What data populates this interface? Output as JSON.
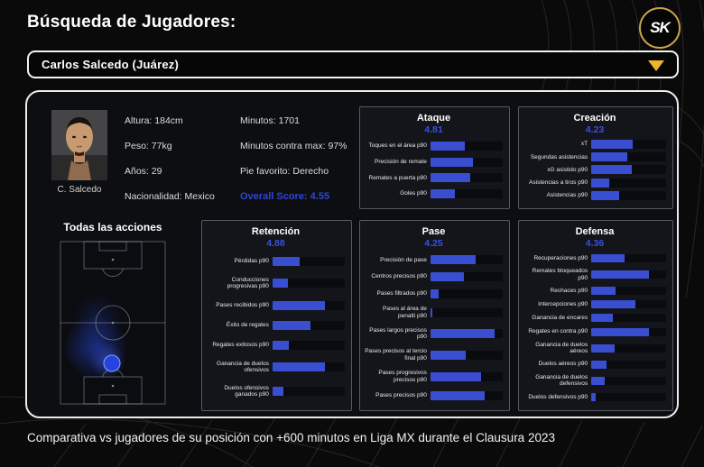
{
  "header": {
    "title": "Búsqueda de Jugadores:",
    "logo_text": "SK"
  },
  "player_select": {
    "value": "Carlos Salcedo (Juárez)"
  },
  "player": {
    "photo_caption": "C. Salcedo",
    "info_left": {
      "altura": "Altura: 184cm",
      "peso": "Peso: 77kg",
      "anos": "Años: 29",
      "nacionalidad": "Nacionalidad: Mexico"
    },
    "info_right": {
      "minutos": "Minutos: 1701",
      "minutos_contra": "Minutos contra max: 97%",
      "pie": "Pie favorito: Derecho"
    },
    "overall_score": "Overall Score: 4.55"
  },
  "pitch": {
    "title": "Todas las acciones"
  },
  "footer": {
    "note": "Comparativa vs jugadores de su posición con +600 minutos en Liga MX durante el Clausura 2023"
  },
  "colors": {
    "bar_blue": "#3a4ed2",
    "score_blue": "#3a50e0",
    "gold": "#f0b429",
    "panel_bg": "#13151b",
    "card_bg": "#0d0e12"
  },
  "chart_data": [
    {
      "type": "bar",
      "orientation": "horizontal",
      "title": "Ataque",
      "score": "4.81",
      "value_range": [
        0,
        100
      ],
      "values_are": "percentile fill of track, estimated from pixels",
      "categories": [
        "Toques en el área p90",
        "Precisión de remate",
        "Remates a puerta p90",
        "Goles p90"
      ],
      "values": [
        48,
        59,
        55,
        34
      ]
    },
    {
      "type": "bar",
      "orientation": "horizontal",
      "title": "Creación",
      "score": "4.23",
      "value_range": [
        0,
        100
      ],
      "values_are": "percentile fill of track, estimated from pixels",
      "categories": [
        "xT",
        "Segundas asistencias",
        "xG asistido p90",
        "Asistencias a tiros p90",
        "Asistencias p90"
      ],
      "values": [
        55,
        48,
        54,
        24,
        37
      ]
    },
    {
      "type": "bar",
      "orientation": "horizontal",
      "title": "Retención",
      "score": "4.88",
      "value_range": [
        0,
        100
      ],
      "values_are": "percentile fill of track, estimated from pixels",
      "categories": [
        "Pérdidas p90",
        "Conducciones progresivas p90",
        "Pases recibidos p90",
        "Éxito de regates",
        "Regates exitosos p90",
        "Ganancia de duelos ofensivos",
        "Duelos ofensivos ganados p90"
      ],
      "values": [
        37,
        22,
        72,
        53,
        23,
        73,
        15
      ]
    },
    {
      "type": "bar",
      "orientation": "horizontal",
      "title": "Pase",
      "score": "4.25",
      "value_range": [
        0,
        100
      ],
      "values_are": "percentile fill of track, estimated from pixels",
      "categories": [
        "Precisión de pase",
        "Centros precisos p90",
        "Pases filtrados p90",
        "Pases al área de penalti p90",
        "Pases largos precisos p90",
        "Pases precisos al tercio final p90",
        "Pases progresivos precisos p90",
        "Pases precisos p90"
      ],
      "values": [
        62,
        46,
        12,
        3,
        89,
        49,
        70,
        75
      ]
    },
    {
      "type": "bar",
      "orientation": "horizontal",
      "title": "Defensa",
      "score": "4.36",
      "value_range": [
        0,
        100
      ],
      "values_are": "percentile fill of track, estimated from pixels",
      "categories": [
        "Recuperaciones p90",
        "Remates bloqueados p90",
        "Rechaces p90",
        "Intercepciones p90",
        "Ganancia de encares",
        "Regates en contra p90",
        "Ganancia de duelos aéreos",
        "Duelos aéreos p90",
        "Ganancia de duelos defensivos",
        "Duelos defensivos p90"
      ],
      "values": [
        45,
        77,
        32,
        59,
        29,
        77,
        31,
        20,
        18,
        6
      ]
    }
  ]
}
